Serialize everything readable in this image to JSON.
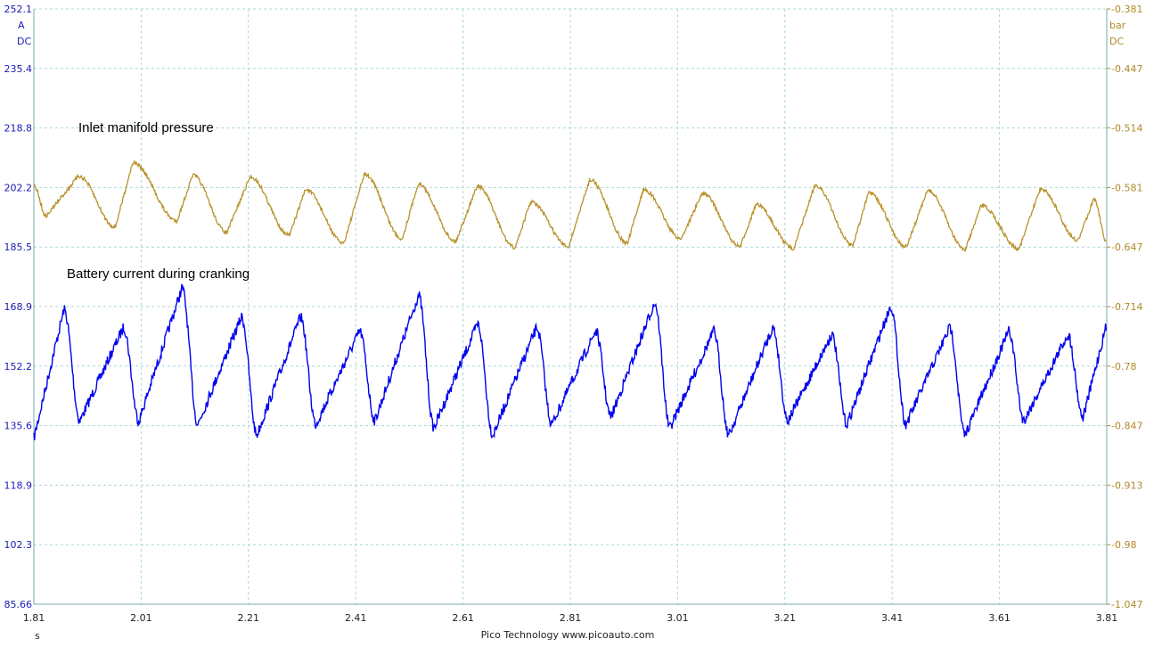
{
  "chart_data": {
    "type": "line",
    "footer": "Pico Technology   www.picoauto.com",
    "x_axis": {
      "unit": "s",
      "min": 1.81,
      "max": 3.81,
      "ticks": [
        "1.81",
        "2.01",
        "2.21",
        "2.41",
        "2.61",
        "2.81",
        "3.01",
        "3.21",
        "3.41",
        "3.61",
        "3.81"
      ]
    },
    "left_axis": {
      "unit": "A",
      "coupling": "DC",
      "min": 85.66,
      "max": 252.1,
      "color": "#1a1ab4",
      "ticks": [
        "252.1",
        "235.4",
        "218.8",
        "202.2",
        "185.5",
        "168.9",
        "152.2",
        "135.6",
        "118.9",
        "102.3",
        "85.66"
      ]
    },
    "right_axis": {
      "unit": "bar",
      "coupling": "DC",
      "min": -1.047,
      "max": -0.381,
      "color": "#b08a2a",
      "ticks": [
        "-0.381",
        "-0.447",
        "-0.514",
        "-0.581",
        "-0.647",
        "-0.714",
        "-0.78",
        "-0.847",
        "-0.913",
        "-0.98",
        "-1.047"
      ]
    },
    "grid": true,
    "series": [
      {
        "name": "Battery current during cranking",
        "axis": "left",
        "color": "#0000ee",
        "x": [
          1.81,
          1.866,
          1.896,
          1.977,
          2.006,
          2.086,
          2.116,
          2.197,
          2.226,
          2.307,
          2.336,
          2.417,
          2.446,
          2.527,
          2.556,
          2.637,
          2.666,
          2.747,
          2.776,
          2.857,
          2.886,
          2.967,
          2.996,
          3.077,
          3.106,
          3.187,
          3.216,
          3.297,
          3.326,
          3.407,
          3.436,
          3.517,
          3.546,
          3.627,
          3.656,
          3.737,
          3.766,
          3.81
        ],
        "y": [
          132,
          168,
          137,
          163,
          137,
          174,
          136,
          166,
          133,
          166,
          136,
          162,
          137,
          172,
          135,
          164,
          133,
          163,
          136,
          162,
          138,
          170,
          135,
          162,
          133,
          163,
          137,
          161,
          136,
          169,
          136,
          163,
          133,
          162,
          137,
          161,
          138,
          164
        ]
      },
      {
        "name": "Inlet manifold pressure",
        "axis": "right",
        "color": "#b8922c",
        "x": [
          1.81,
          1.833,
          1.893,
          1.962,
          1.994,
          2.077,
          2.106,
          2.17,
          2.213,
          2.287,
          2.316,
          2.388,
          2.426,
          2.497,
          2.526,
          2.597,
          2.636,
          2.707,
          2.736,
          2.807,
          2.846,
          2.917,
          2.946,
          3.017,
          3.056,
          3.127,
          3.156,
          3.227,
          3.266,
          3.337,
          3.366,
          3.437,
          3.476,
          3.547,
          3.576,
          3.647,
          3.686,
          3.757,
          3.786,
          3.81
        ],
        "y": [
          -0.578,
          -0.613,
          -0.568,
          -0.625,
          -0.553,
          -0.618,
          -0.567,
          -0.631,
          -0.569,
          -0.634,
          -0.583,
          -0.643,
          -0.566,
          -0.638,
          -0.577,
          -0.641,
          -0.579,
          -0.648,
          -0.597,
          -0.647,
          -0.572,
          -0.643,
          -0.583,
          -0.638,
          -0.587,
          -0.647,
          -0.6,
          -0.649,
          -0.578,
          -0.645,
          -0.587,
          -0.647,
          -0.584,
          -0.65,
          -0.601,
          -0.649,
          -0.582,
          -0.64,
          -0.593,
          -0.641
        ]
      }
    ]
  }
}
